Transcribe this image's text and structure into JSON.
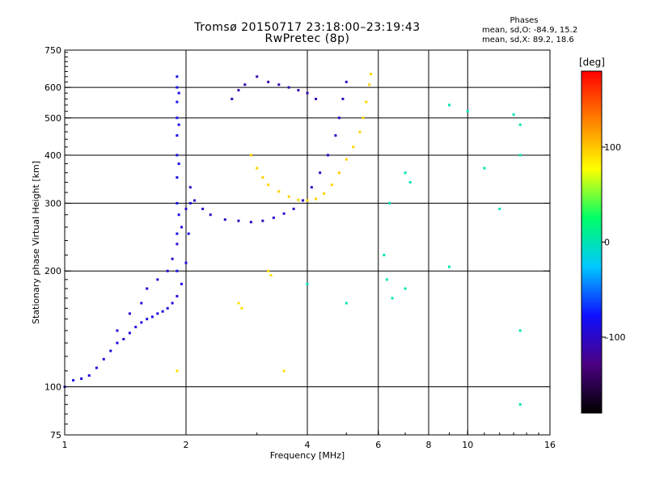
{
  "header": {
    "title_line1": "Tromsø 20150717 23:18:00–23:19:43",
    "title_line2": "RwPretec (8p)",
    "phase_heading": "Phases",
    "phase_o": "mean, sd,O: -84.9, 15.2",
    "phase_x": "mean, sd,X:  89.2, 18.6"
  },
  "colorbar": {
    "label": "[deg]",
    "ticks": [
      {
        "value": 100,
        "label": "100"
      },
      {
        "value": 0,
        "label": "0"
      },
      {
        "value": -100,
        "label": "–100"
      }
    ],
    "range": [
      -180,
      180
    ],
    "colors": [
      "#000000",
      "#4b0082",
      "#1010ff",
      "#00c8ff",
      "#00ff66",
      "#ffff00",
      "#ff8000",
      "#ff0000"
    ]
  },
  "chart_data": {
    "type": "scatter",
    "title": "Tromsø 20150717 23:18:00–23:19:43",
    "subtitle": "RwPretec (8p)",
    "xlabel": "Frequency [MHz]",
    "ylabel": "Stationary phase Virtual Height [km]",
    "xscale": "log",
    "yscale": "log",
    "xlim": [
      1,
      16
    ],
    "ylim": [
      75,
      750
    ],
    "xticks": [
      1,
      2,
      4,
      6,
      8,
      10,
      16
    ],
    "yticks": [
      75,
      100,
      200,
      300,
      400,
      500,
      600,
      750
    ],
    "xgrid": [
      2,
      4,
      6,
      8,
      10
    ],
    "ygrid": [
      100,
      200,
      300,
      400,
      500,
      600
    ],
    "traces": [
      {
        "kind": "O-mode low-band",
        "color_phase": -90,
        "points": [
          [
            1.0,
            100
          ],
          [
            1.05,
            104
          ],
          [
            1.1,
            105
          ],
          [
            1.15,
            107
          ],
          [
            1.2,
            112
          ],
          [
            1.25,
            118
          ],
          [
            1.3,
            124
          ],
          [
            1.35,
            130
          ],
          [
            1.4,
            133
          ],
          [
            1.45,
            138
          ],
          [
            1.5,
            143
          ],
          [
            1.55,
            147
          ],
          [
            1.6,
            150
          ],
          [
            1.65,
            152
          ],
          [
            1.7,
            155
          ],
          [
            1.75,
            157
          ],
          [
            1.8,
            160
          ],
          [
            1.85,
            165
          ],
          [
            1.9,
            172
          ],
          [
            1.95,
            185
          ],
          [
            2.0,
            210
          ],
          [
            2.03,
            250
          ],
          [
            2.05,
            300
          ]
        ]
      },
      {
        "kind": "O-mode low-band upper",
        "color_phase": -95,
        "points": [
          [
            1.35,
            140
          ],
          [
            1.45,
            155
          ],
          [
            1.55,
            165
          ],
          [
            1.6,
            180
          ],
          [
            1.7,
            190
          ],
          [
            1.8,
            200
          ],
          [
            1.85,
            215
          ],
          [
            1.9,
            235
          ],
          [
            1.95,
            260
          ],
          [
            2.0,
            290
          ]
        ]
      },
      {
        "kind": "O-mode vertical spread",
        "color_phase": -85,
        "points": [
          [
            1.9,
            200
          ],
          [
            1.9,
            250
          ],
          [
            1.9,
            300
          ],
          [
            1.9,
            350
          ],
          [
            1.9,
            400
          ],
          [
            1.9,
            450
          ],
          [
            1.9,
            500
          ],
          [
            1.9,
            550
          ],
          [
            1.9,
            600
          ],
          [
            1.9,
            640
          ],
          [
            1.92,
            280
          ],
          [
            1.92,
            380
          ],
          [
            1.92,
            480
          ],
          [
            1.92,
            580
          ]
        ]
      },
      {
        "kind": "O-mode F-layer trace",
        "color_phase": -100,
        "points": [
          [
            2.05,
            330
          ],
          [
            2.1,
            305
          ],
          [
            2.2,
            290
          ],
          [
            2.3,
            280
          ],
          [
            2.5,
            272
          ],
          [
            2.7,
            270
          ],
          [
            2.9,
            268
          ],
          [
            3.1,
            270
          ],
          [
            3.3,
            275
          ],
          [
            3.5,
            282
          ],
          [
            3.7,
            290
          ],
          [
            3.9,
            305
          ],
          [
            4.1,
            330
          ],
          [
            4.3,
            360
          ],
          [
            4.5,
            400
          ],
          [
            4.7,
            450
          ],
          [
            4.8,
            500
          ],
          [
            4.9,
            560
          ],
          [
            5.0,
            620
          ]
        ]
      },
      {
        "kind": "O-mode multi-hop",
        "color_phase": -110,
        "points": [
          [
            2.6,
            560
          ],
          [
            2.7,
            590
          ],
          [
            2.8,
            610
          ],
          [
            3.0,
            640
          ],
          [
            3.2,
            620
          ],
          [
            3.4,
            610
          ],
          [
            3.6,
            600
          ],
          [
            3.8,
            590
          ],
          [
            4.0,
            580
          ],
          [
            4.2,
            560
          ]
        ]
      },
      {
        "kind": "X-mode F-layer trace",
        "color_phase": 95,
        "points": [
          [
            2.9,
            400
          ],
          [
            3.0,
            370
          ],
          [
            3.1,
            350
          ],
          [
            3.2,
            335
          ],
          [
            3.4,
            322
          ],
          [
            3.6,
            312
          ],
          [
            3.8,
            306
          ],
          [
            4.0,
            305
          ],
          [
            4.2,
            308
          ],
          [
            4.4,
            318
          ],
          [
            4.6,
            335
          ],
          [
            4.8,
            360
          ],
          [
            5.0,
            390
          ],
          [
            5.2,
            420
          ],
          [
            5.4,
            460
          ],
          [
            5.5,
            500
          ],
          [
            5.6,
            550
          ],
          [
            5.7,
            610
          ],
          [
            5.75,
            650
          ]
        ]
      },
      {
        "kind": "X-mode low scatter",
        "color_phase": 90,
        "points": [
          [
            3.2,
            200
          ],
          [
            3.25,
            195
          ],
          [
            2.7,
            165
          ],
          [
            2.75,
            160
          ],
          [
            3.5,
            110
          ],
          [
            1.9,
            110
          ]
        ]
      },
      {
        "kind": "isolated noise",
        "color_phase": 0,
        "points": [
          [
            6.3,
            190
          ],
          [
            6.5,
            170
          ],
          [
            7.0,
            360
          ],
          [
            7.2,
            340
          ],
          [
            9.0,
            205
          ],
          [
            9.0,
            540
          ],
          [
            10.0,
            520
          ],
          [
            11.0,
            370
          ],
          [
            12.0,
            290
          ],
          [
            13.0,
            510
          ],
          [
            13.5,
            480
          ],
          [
            13.5,
            140
          ],
          [
            13.5,
            400
          ],
          [
            13.5,
            90
          ],
          [
            6.2,
            220
          ],
          [
            6.4,
            300
          ],
          [
            7.0,
            180
          ],
          [
            5.0,
            165
          ],
          [
            4.0,
            185
          ]
        ]
      }
    ]
  }
}
